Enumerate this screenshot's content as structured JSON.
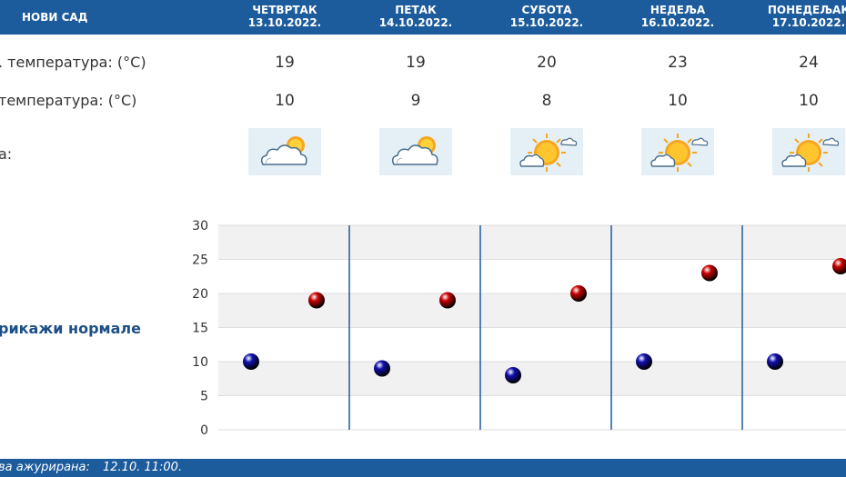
{
  "header": {
    "city": "НОВИ САД",
    "days": [
      {
        "name": "ЧЕТВРТАК",
        "date": "13.10.2022."
      },
      {
        "name": "ПЕТАК",
        "date": "14.10.2022."
      },
      {
        "name": "СУБОТА",
        "date": "15.10.2022."
      },
      {
        "name": "НЕДЕЉА",
        "date": "16.10.2022."
      },
      {
        "name": "ПОНЕДЕЉАК",
        "date": "17.10.2022."
      }
    ]
  },
  "rows": {
    "max_label": ". температура: (°C)",
    "min_label": "температура: (°C)",
    "weather_label": "а:",
    "max": [
      "19",
      "19",
      "20",
      "23",
      "24"
    ],
    "min": [
      "10",
      "9",
      "8",
      "10",
      "10"
    ],
    "icons": [
      "partly-cloudy-icon",
      "partly-cloudy-icon",
      "mostly-sunny-icon",
      "mostly-sunny-icon",
      "mostly-sunny-icon"
    ]
  },
  "normals_link": "рикажи нормале",
  "chart_data": {
    "type": "scatter",
    "categories": [
      "13.10.2022.",
      "14.10.2022.",
      "15.10.2022.",
      "16.10.2022.",
      "17.10.2022."
    ],
    "series": [
      {
        "values": [
          10,
          9,
          8,
          10,
          10
        ],
        "color": "#1010b0"
      },
      {
        "values": [
          19,
          19,
          20,
          23,
          24
        ],
        "color": "#cc0000"
      }
    ],
    "ylim": [
      0,
      30
    ],
    "yticks": [
      0,
      5,
      10,
      15,
      20,
      25,
      30
    ],
    "grid": true,
    "colors": {
      "band": "#f1f1f1",
      "divider": "#1c5b9c",
      "grid": "#dddddd"
    }
  },
  "footer": {
    "label": "ва ажурирана:",
    "value": "12.10. 11:00."
  },
  "colors": {
    "header_bg": "#1c5b9c",
    "icon_bg": "#e4f0f6"
  }
}
